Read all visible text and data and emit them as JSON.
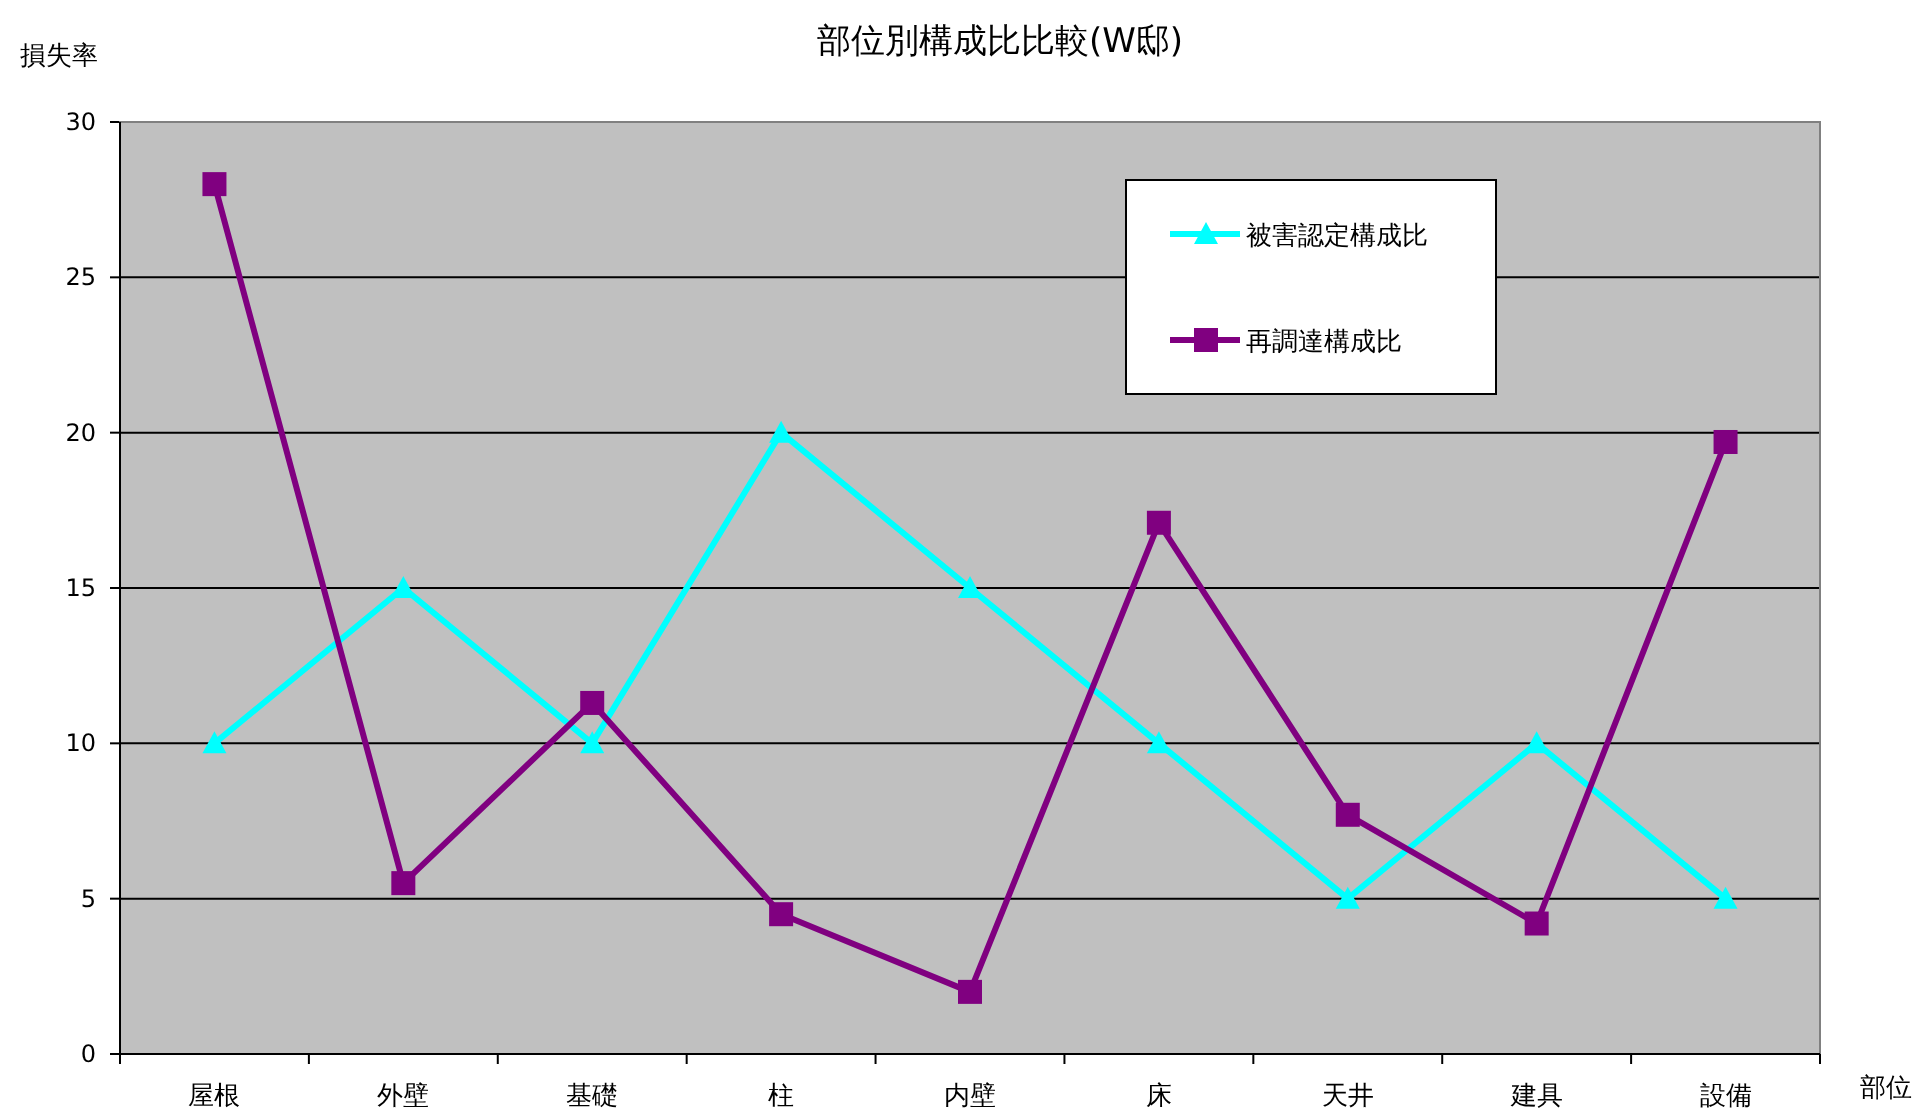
{
  "chart_data": {
    "type": "line",
    "title": "部位別構成比比較(W邸)",
    "xlabel": "部位",
    "ylabel": "損失率",
    "categories": [
      "屋根",
      "外壁",
      "基礎",
      "柱",
      "内壁",
      "床",
      "天井",
      "建具",
      "設備"
    ],
    "series": [
      {
        "name": "被害認定構成比",
        "color": "#00ffff",
        "marker": "triangle",
        "values": [
          10,
          15,
          10,
          20,
          15,
          10,
          5,
          10,
          5
        ]
      },
      {
        "name": "再調達構成比",
        "color": "#800080",
        "marker": "square",
        "values": [
          28,
          5.5,
          11.3,
          4.5,
          2.0,
          17.1,
          7.7,
          4.2,
          19.7
        ]
      }
    ],
    "ylim": [
      0,
      30
    ],
    "yticks": [
      0,
      5,
      10,
      15,
      20,
      25,
      30
    ],
    "grid": "y",
    "legend": "top right"
  }
}
